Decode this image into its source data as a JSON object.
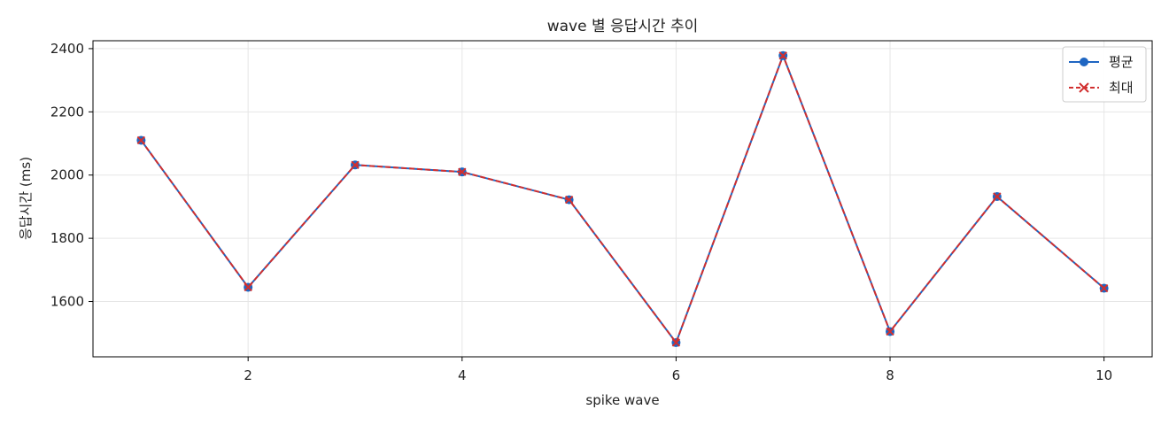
{
  "chart_data": {
    "type": "line",
    "title": "wave 별 응답시간 추이",
    "xlabel": "spike wave",
    "ylabel": "응답시간 (ms)",
    "x": [
      1,
      2,
      3,
      4,
      5,
      6,
      7,
      8,
      9,
      10
    ],
    "xlim": [
      0.55,
      10.45
    ],
    "ylim": [
      1425,
      2425
    ],
    "x_ticks": [
      2,
      4,
      6,
      8,
      10
    ],
    "y_ticks": [
      1600,
      1800,
      2000,
      2200,
      2400
    ],
    "grid": true,
    "legend_position": "top-right",
    "series": [
      {
        "name": "평균",
        "values": [
          2110,
          1645,
          2032,
          2010,
          1922,
          1470,
          2378,
          1505,
          1932,
          1642
        ],
        "color": "#1f66c2",
        "line_style": "solid",
        "marker": "circle"
      },
      {
        "name": "최대",
        "values": [
          2110,
          1645,
          2032,
          2010,
          1922,
          1470,
          2378,
          1505,
          1932,
          1642
        ],
        "color": "#d12f2f",
        "line_style": "dashed",
        "marker": "x"
      }
    ]
  }
}
